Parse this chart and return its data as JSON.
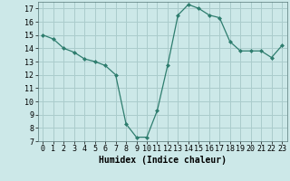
{
  "x": [
    0,
    1,
    2,
    3,
    4,
    5,
    6,
    7,
    8,
    9,
    10,
    11,
    12,
    13,
    14,
    15,
    16,
    17,
    18,
    19,
    20,
    21,
    22,
    23
  ],
  "y": [
    15.0,
    14.7,
    14.0,
    13.7,
    13.2,
    13.0,
    12.7,
    12.0,
    8.3,
    7.3,
    7.3,
    9.3,
    12.7,
    16.5,
    17.3,
    17.0,
    16.5,
    16.3,
    14.5,
    13.8,
    13.8,
    13.8,
    13.3,
    14.2
  ],
  "line_color": "#2e7d6e",
  "marker": "D",
  "marker_size": 2.0,
  "bg_color": "#cce8e8",
  "grid_color": "#aacccc",
  "xlabel": "Humidex (Indice chaleur)",
  "xlabel_fontsize": 7,
  "tick_fontsize": 6,
  "ylim": [
    7,
    17.5
  ],
  "xlim": [
    -0.5,
    23.5
  ],
  "yticks": [
    7,
    8,
    9,
    10,
    11,
    12,
    13,
    14,
    15,
    16,
    17
  ],
  "xticks": [
    0,
    1,
    2,
    3,
    4,
    5,
    6,
    7,
    8,
    9,
    10,
    11,
    12,
    13,
    14,
    15,
    16,
    17,
    18,
    19,
    20,
    21,
    22,
    23
  ]
}
